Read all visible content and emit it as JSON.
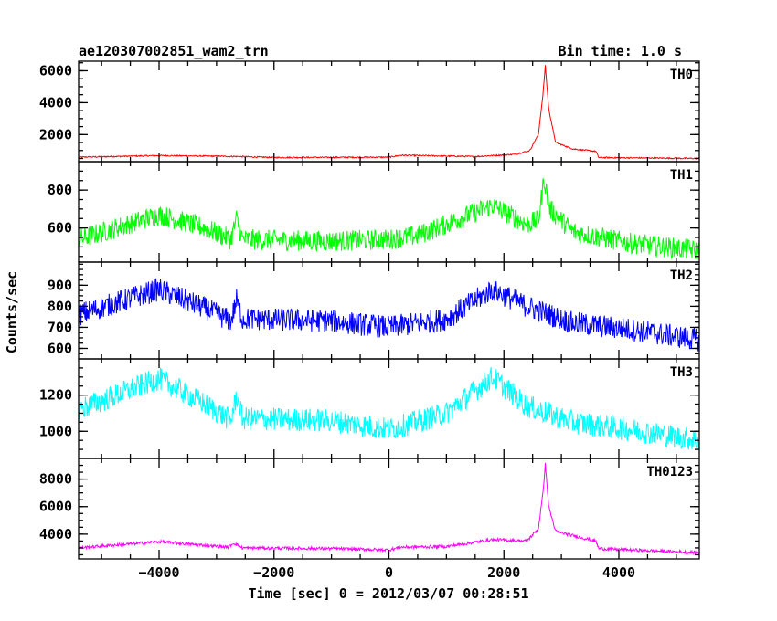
{
  "chart_data": {
    "type": "line",
    "title": "ae120307002851_wam2_trn",
    "bin_time_label": "Bin time: 1.0 s",
    "xlabel": "Time [sec] 0 = 2012/03/07 00:28:51",
    "ylabel": "Counts/sec",
    "xlim": [
      -5400,
      5400
    ],
    "x_ticks": [
      -4000,
      -2000,
      0,
      2000,
      4000
    ],
    "x_tick_labels": [
      "−4000",
      "−2000",
      "0",
      "2000",
      "4000"
    ],
    "panels": [
      {
        "name": "TH0",
        "color": "#ff0000",
        "ylim": [
          300,
          6600
        ],
        "y_ticks": [
          2000,
          4000,
          6000
        ],
        "y_tick_labels": [
          "2000",
          "4000",
          "6000"
        ],
        "baseline": [
          [
            -5400,
            580
          ],
          [
            -4000,
            680
          ],
          [
            -2700,
            630
          ],
          [
            -2000,
            560
          ],
          [
            0,
            580
          ],
          [
            200,
            700
          ],
          [
            1500,
            620
          ],
          [
            2200,
            760
          ],
          [
            2450,
            1000
          ],
          [
            2600,
            2000
          ],
          [
            2680,
            4500
          ],
          [
            2720,
            6350
          ],
          [
            2780,
            3600
          ],
          [
            2900,
            1500
          ],
          [
            3200,
            1100
          ],
          [
            3600,
            950
          ],
          [
            3650,
            560
          ],
          [
            5400,
            500
          ]
        ],
        "noise": 40
      },
      {
        "name": "TH1",
        "color": "#00ff00",
        "ylim": [
          420,
          950
        ],
        "y_ticks": [
          600,
          800
        ],
        "y_tick_labels": [
          "600",
          "800"
        ],
        "baseline": [
          [
            -5400,
            540
          ],
          [
            -4000,
            670
          ],
          [
            -3200,
            600
          ],
          [
            -2750,
            540
          ],
          [
            -2650,
            650
          ],
          [
            -2550,
            540
          ],
          [
            -1000,
            530
          ],
          [
            0,
            540
          ],
          [
            500,
            560
          ],
          [
            1000,
            620
          ],
          [
            1800,
            720
          ],
          [
            2400,
            620
          ],
          [
            2600,
            640
          ],
          [
            2700,
            860
          ],
          [
            2800,
            700
          ],
          [
            3200,
            580
          ],
          [
            4200,
            520
          ],
          [
            5400,
            480
          ]
        ],
        "noise": 55
      },
      {
        "name": "TH2",
        "color": "#0000ff",
        "ylim": [
          550,
          1010
        ],
        "y_ticks": [
          600,
          700,
          800,
          900
        ],
        "y_tick_labels": [
          "600",
          "700",
          "800",
          "900"
        ],
        "baseline": [
          [
            -5400,
            760
          ],
          [
            -4000,
            880
          ],
          [
            -3200,
            790
          ],
          [
            -2750,
            730
          ],
          [
            -2650,
            830
          ],
          [
            -2550,
            740
          ],
          [
            -1000,
            730
          ],
          [
            0,
            700
          ],
          [
            1000,
            740
          ],
          [
            1800,
            880
          ],
          [
            2400,
            800
          ],
          [
            3200,
            720
          ],
          [
            4200,
            690
          ],
          [
            5400,
            640
          ]
        ],
        "noise": 55
      },
      {
        "name": "TH3",
        "color": "#00ffff",
        "ylim": [
          850,
          1400
        ],
        "y_ticks": [
          1000,
          1200
        ],
        "y_tick_labels": [
          "1000",
          "1200"
        ],
        "baseline": [
          [
            -5400,
            1120
          ],
          [
            -4000,
            1290
          ],
          [
            -3200,
            1150
          ],
          [
            -2750,
            1060
          ],
          [
            -2650,
            1200
          ],
          [
            -2550,
            1070
          ],
          [
            -1000,
            1060
          ],
          [
            0,
            1010
          ],
          [
            1000,
            1100
          ],
          [
            1800,
            1300
          ],
          [
            2400,
            1140
          ],
          [
            3200,
            1050
          ],
          [
            4200,
            1010
          ],
          [
            5400,
            950
          ]
        ],
        "noise": 65
      },
      {
        "name": "TH0123",
        "color": "#ff00ff",
        "ylim": [
          2200,
          9500
        ],
        "y_ticks": [
          4000,
          6000,
          8000
        ],
        "y_tick_labels": [
          "4000",
          "6000",
          "8000"
        ],
        "baseline": [
          [
            -5400,
            3000
          ],
          [
            -4000,
            3450
          ],
          [
            -2800,
            3050
          ],
          [
            -2700,
            3350
          ],
          [
            -2550,
            3000
          ],
          [
            -1000,
            2950
          ],
          [
            0,
            2850
          ],
          [
            200,
            3050
          ],
          [
            1000,
            3100
          ],
          [
            1800,
            3600
          ],
          [
            2400,
            3500
          ],
          [
            2600,
            4400
          ],
          [
            2680,
            7000
          ],
          [
            2720,
            9100
          ],
          [
            2780,
            6000
          ],
          [
            2900,
            4200
          ],
          [
            3200,
            3900
          ],
          [
            3600,
            3500
          ],
          [
            3650,
            2950
          ],
          [
            5400,
            2650
          ]
        ],
        "noise": 110
      }
    ]
  }
}
